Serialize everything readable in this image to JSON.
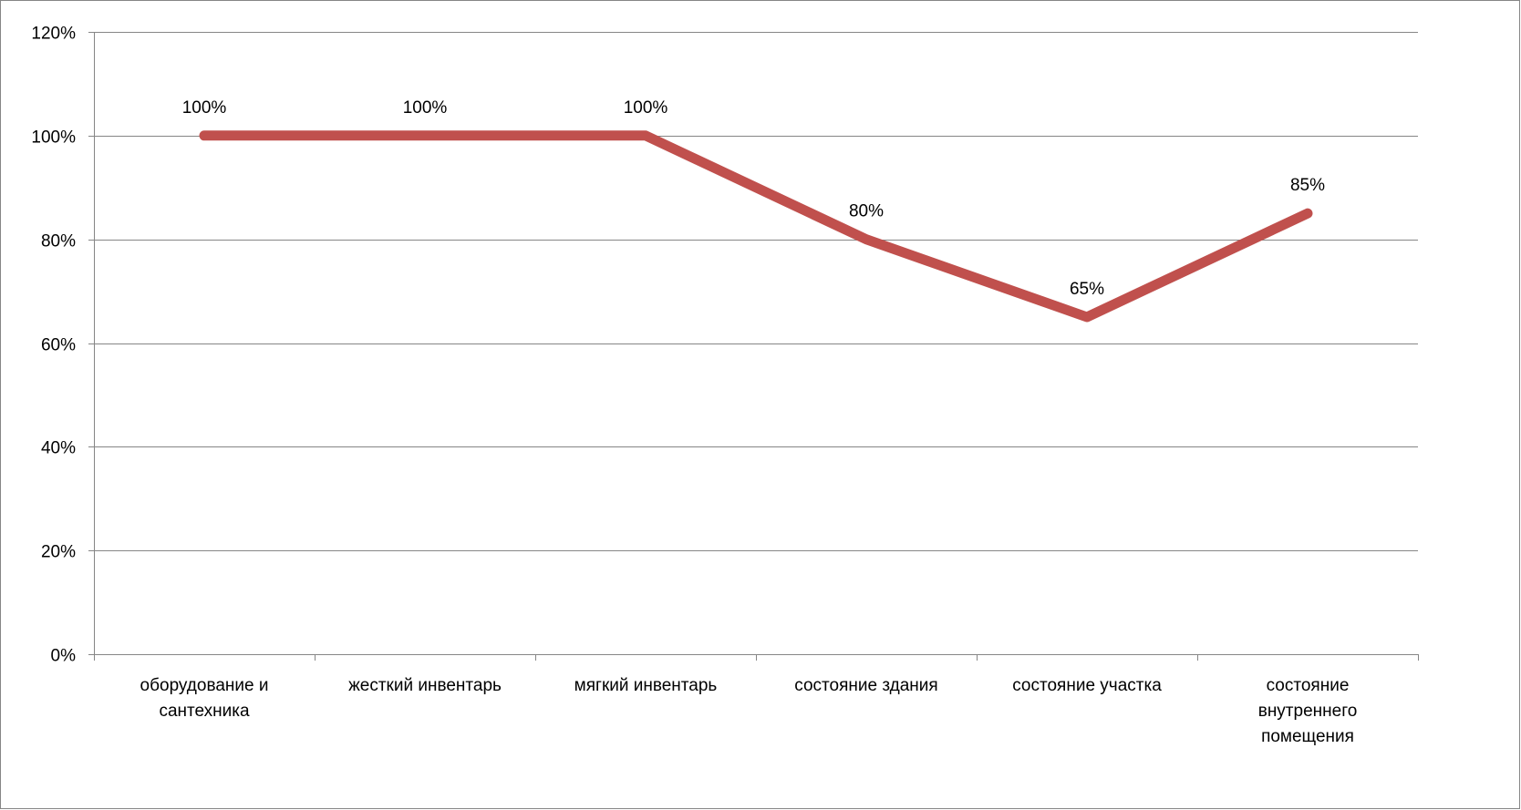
{
  "chart_data": {
    "type": "line",
    "categories": [
      [
        "оборудование и",
        "сантехника"
      ],
      [
        "жесткий инвентарь"
      ],
      [
        "мягкий инвентарь"
      ],
      [
        "состояние здания"
      ],
      [
        "состояние участка"
      ],
      [
        "состояние",
        "внутреннего",
        "помещения"
      ]
    ],
    "series": [
      {
        "values": [
          100,
          100,
          100,
          80,
          65,
          85
        ],
        "labels": [
          "100%",
          "100%",
          "100%",
          "80%",
          "65%",
          "85%"
        ],
        "color": "#c0504d"
      }
    ],
    "y_ticks": [
      "0%",
      "20%",
      "40%",
      "60%",
      "80%",
      "100%",
      "120%"
    ],
    "ylim": [
      0,
      120
    ],
    "y_step": 20,
    "grid": true,
    "legend": "none",
    "colors": {
      "line": "#c0504d",
      "grid": "#868686",
      "axis": "#868686",
      "border": "#868686",
      "text": "#000000"
    }
  }
}
